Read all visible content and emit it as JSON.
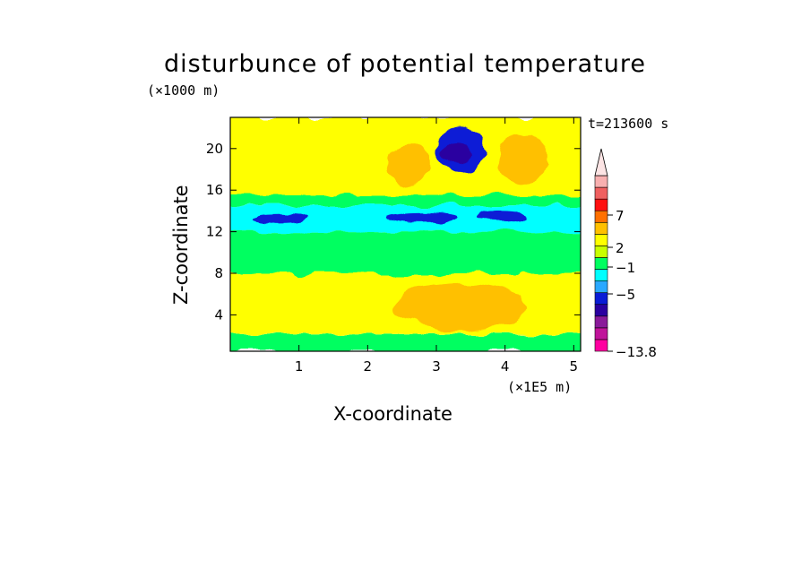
{
  "chart_data": {
    "type": "heatmap",
    "title": "disturbunce of potential temperature",
    "xlabel": "X-coordinate",
    "ylabel": "Z-coordinate",
    "x_unit": "(×1E5 m)",
    "y_unit": "(×1000 m)",
    "time_label": "t=213600 s",
    "xlim": [
      0,
      5.1
    ],
    "ylim": [
      0.5,
      23
    ],
    "x_ticks": [
      "1",
      "2",
      "3",
      "4",
      "5"
    ],
    "y_ticks": [
      "4",
      "8",
      "12",
      "16",
      "20"
    ],
    "colorbar": {
      "tick_labels": [
        "7",
        "2",
        "−1",
        "−5",
        "−13.8"
      ],
      "colors": [
        "#ff00a0",
        "#c0149a",
        "#8a1a9a",
        "#2a00a0",
        "#0a1cd6",
        "#2aa8ff",
        "#00ffff",
        "#00ff60",
        "#c8ff00",
        "#ffff00",
        "#ffc000",
        "#ff7000",
        "#ff1010",
        "#f06060",
        "#f8b0b0"
      ]
    },
    "regions": [
      {
        "name": "surface-layer",
        "x0": 0,
        "x1": 5.1,
        "y0": 0.5,
        "y1": 2.2,
        "level": "green"
      },
      {
        "name": "lower-yellow",
        "x0": 0,
        "x1": 5.1,
        "y0": 2.2,
        "y1": 8.0,
        "level": "yellow"
      },
      {
        "name": "lower-orange",
        "x0": 2.4,
        "x1": 4.3,
        "y0": 2.5,
        "y1": 7.0,
        "level": "orange"
      },
      {
        "name": "mid-green",
        "x0": 0,
        "x1": 5.1,
        "y0": 8.0,
        "y1": 12.0,
        "level": "green"
      },
      {
        "name": "cyan-band",
        "x0": 0,
        "x1": 5.1,
        "y0": 12.0,
        "y1": 14.5,
        "level": "cyan"
      },
      {
        "name": "upper-green",
        "x0": 0,
        "x1": 5.1,
        "y0": 14.5,
        "y1": 23,
        "level": "green"
      },
      {
        "name": "upper-yellow",
        "x0": 0,
        "x1": 5.1,
        "y0": 15.5,
        "y1": 23,
        "level": "yellow"
      },
      {
        "name": "blue-core",
        "x0": 3.0,
        "x1": 3.7,
        "y0": 17.8,
        "y1": 22,
        "level": "blue"
      },
      {
        "name": "darkblue-core",
        "x0": 3.1,
        "x1": 3.5,
        "y0": 18.5,
        "y1": 20.6,
        "level": "darkblue"
      },
      {
        "name": "orange-blob-1",
        "x0": 2.3,
        "x1": 2.9,
        "y0": 16.5,
        "y1": 20.5,
        "level": "orange"
      },
      {
        "name": "orange-blob-2",
        "x0": 3.9,
        "x1": 4.6,
        "y0": 16.5,
        "y1": 21.5,
        "level": "orange"
      },
      {
        "name": "blue-streak-1",
        "x0": 0.35,
        "x1": 1.1,
        "y0": 12.8,
        "y1": 13.8,
        "level": "blue"
      },
      {
        "name": "blue-streak-2",
        "x0": 2.3,
        "x1": 3.3,
        "y0": 12.8,
        "y1": 13.8,
        "level": "blue"
      },
      {
        "name": "blue-streak-3",
        "x0": 3.6,
        "x1": 4.3,
        "y0": 13.0,
        "y1": 14.0,
        "level": "blue"
      }
    ]
  }
}
